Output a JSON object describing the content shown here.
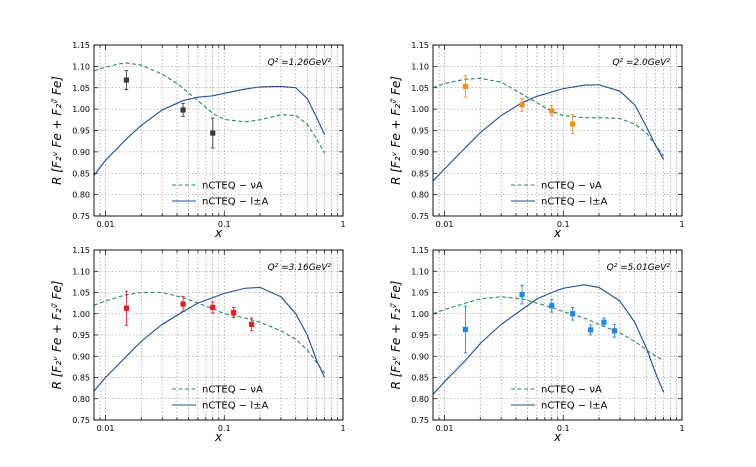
{
  "chart_data": [
    {
      "type": "line",
      "annotation": "Q² =1.26GeV²",
      "xlabel": "x",
      "ylabel": "R [F₂ᵛ Fe + F₂ᵛ̄ Fe]",
      "xscale": "log",
      "xlim": [
        0.008,
        1.0
      ],
      "ylim": [
        0.75,
        1.15
      ],
      "legend": {
        "placement": "lower-center",
        "entries": [
          "nCTEQ − νA",
          "nCTEQ − l±A"
        ]
      },
      "series": [
        {
          "name": "nCTEQ − νA",
          "style": "dashed",
          "color": "#2e8b57",
          "x": [
            0.008,
            0.01,
            0.0125,
            0.015,
            0.02,
            0.03,
            0.04,
            0.06,
            0.08,
            0.1,
            0.15,
            0.2,
            0.3,
            0.4,
            0.5,
            0.6,
            0.7
          ],
          "y": [
            1.09,
            1.098,
            1.105,
            1.108,
            1.103,
            1.082,
            1.06,
            1.02,
            0.99,
            0.976,
            0.97,
            0.975,
            0.987,
            0.985,
            0.965,
            0.93,
            0.897
          ]
        },
        {
          "name": "nCTEQ − l±A",
          "style": "solid",
          "color": "#1f4e96",
          "x": [
            0.008,
            0.01,
            0.015,
            0.02,
            0.03,
            0.045,
            0.06,
            0.08,
            0.1,
            0.15,
            0.2,
            0.3,
            0.4,
            0.5,
            0.6,
            0.7
          ],
          "y": [
            0.845,
            0.88,
            0.93,
            0.962,
            0.998,
            1.02,
            1.028,
            1.031,
            1.037,
            1.047,
            1.052,
            1.053,
            1.05,
            1.025,
            0.98,
            0.94
          ]
        }
      ],
      "points": {
        "color": "#3a3a3a",
        "x": [
          0.015,
          0.045,
          0.08
        ],
        "y": [
          1.068,
          0.998,
          0.944
        ],
        "err": [
          0.022,
          0.015,
          0.035
        ]
      },
      "xticks": [
        0.01,
        0.1,
        1
      ],
      "xticklabels": [
        "0.01",
        "0.1",
        "1"
      ],
      "yticks": [
        0.75,
        0.8,
        0.85,
        0.9,
        0.95,
        1.0,
        1.05,
        1.1,
        1.15
      ],
      "yticklabels": [
        "0.75",
        "0.80",
        "0.85",
        "0.90",
        "0.95",
        "1.00",
        "1.05",
        "1.10",
        "1.15"
      ]
    },
    {
      "type": "line",
      "annotation": "Q² =2.0GeV²",
      "xlabel": "x",
      "ylabel": "R [F₂ᵛ Fe + F₂ᵛ̄ Fe]",
      "xscale": "log",
      "xlim": [
        0.008,
        1.0
      ],
      "ylim": [
        0.75,
        1.15
      ],
      "legend": {
        "placement": "lower-center",
        "entries": [
          "nCTEQ − νA",
          "nCTEQ − l±A"
        ]
      },
      "series": [
        {
          "name": "nCTEQ − νA",
          "style": "dashed",
          "color": "#2e8b57",
          "x": [
            0.008,
            0.01,
            0.015,
            0.02,
            0.03,
            0.045,
            0.06,
            0.08,
            0.1,
            0.15,
            0.2,
            0.3,
            0.4,
            0.5,
            0.6,
            0.7
          ],
          "y": [
            1.05,
            1.06,
            1.07,
            1.072,
            1.063,
            1.035,
            1.015,
            0.995,
            0.985,
            0.98,
            0.98,
            0.978,
            0.965,
            0.945,
            0.915,
            0.89
          ]
        },
        {
          "name": "nCTEQ − l±A",
          "style": "solid",
          "color": "#1f4e96",
          "x": [
            0.008,
            0.01,
            0.015,
            0.02,
            0.03,
            0.045,
            0.06,
            0.08,
            0.1,
            0.15,
            0.2,
            0.3,
            0.4,
            0.5,
            0.6,
            0.7
          ],
          "y": [
            0.832,
            0.86,
            0.91,
            0.945,
            0.985,
            1.015,
            1.03,
            1.04,
            1.048,
            1.056,
            1.057,
            1.042,
            1.01,
            0.96,
            0.915,
            0.882
          ]
        }
      ],
      "points": {
        "color": "#f28c28",
        "x": [
          0.015,
          0.045,
          0.08,
          0.12
        ],
        "y": [
          1.053,
          1.01,
          0.996,
          0.965
        ],
        "err": [
          0.025,
          0.015,
          0.012,
          0.022
        ]
      },
      "xticks": [
        0.01,
        0.1,
        1
      ],
      "xticklabels": [
        "0.01",
        "0.1",
        "1"
      ],
      "yticks": [
        0.75,
        0.8,
        0.85,
        0.9,
        0.95,
        1.0,
        1.05,
        1.1,
        1.15
      ],
      "yticklabels": [
        "0.75",
        "0.80",
        "0.85",
        "0.90",
        "0.95",
        "1.00",
        "1.05",
        "1.10",
        "1.15"
      ]
    },
    {
      "type": "line",
      "annotation": "Q² =3.16GeV²",
      "xlabel": "x",
      "ylabel": "R [F₂ᵛ Fe + F₂ᵛ̄ Fe]",
      "xscale": "log",
      "xlim": [
        0.008,
        1.0
      ],
      "ylim": [
        0.75,
        1.15
      ],
      "legend": {
        "placement": "lower-center",
        "entries": [
          "nCTEQ − νA",
          "nCTEQ − l±A"
        ]
      },
      "series": [
        {
          "name": "nCTEQ − νA",
          "style": "dashed",
          "color": "#2e8b57",
          "x": [
            0.008,
            0.01,
            0.015,
            0.02,
            0.03,
            0.045,
            0.06,
            0.08,
            0.1,
            0.15,
            0.2,
            0.3,
            0.4,
            0.5,
            0.6,
            0.7
          ],
          "y": [
            1.02,
            1.03,
            1.045,
            1.05,
            1.05,
            1.038,
            1.025,
            1.012,
            1.0,
            0.99,
            0.98,
            0.96,
            0.94,
            0.915,
            0.885,
            0.86
          ]
        },
        {
          "name": "nCTEQ − l±A",
          "style": "solid",
          "color": "#1f4e96",
          "x": [
            0.008,
            0.01,
            0.015,
            0.02,
            0.03,
            0.045,
            0.06,
            0.08,
            0.1,
            0.15,
            0.2,
            0.3,
            0.4,
            0.5,
            0.6,
            0.7
          ],
          "y": [
            0.818,
            0.85,
            0.9,
            0.935,
            0.975,
            1.005,
            1.025,
            1.038,
            1.048,
            1.06,
            1.062,
            1.04,
            1.0,
            0.95,
            0.89,
            0.85
          ]
        }
      ],
      "points": {
        "color": "#e02020",
        "x": [
          0.015,
          0.045,
          0.08,
          0.12,
          0.17
        ],
        "y": [
          1.013,
          1.023,
          1.015,
          1.003,
          0.975
        ],
        "err": [
          0.04,
          0.018,
          0.013,
          0.012,
          0.015
        ]
      },
      "xticks": [
        0.01,
        0.1,
        1
      ],
      "xticklabels": [
        "0.01",
        "0.1",
        "1"
      ],
      "yticks": [
        0.75,
        0.8,
        0.85,
        0.9,
        0.95,
        1.0,
        1.05,
        1.1,
        1.15
      ],
      "yticklabels": [
        "0.75",
        "0.80",
        "0.85",
        "0.90",
        "0.95",
        "1.00",
        "1.05",
        "1.10",
        "1.15"
      ]
    },
    {
      "type": "line",
      "annotation": "Q² =5.01GeV²",
      "xlabel": "x",
      "ylabel": "R [F₂ᵛ Fe + F₂ᵛ̄ Fe]",
      "xscale": "log",
      "xlim": [
        0.008,
        1.0
      ],
      "ylim": [
        0.75,
        1.15
      ],
      "legend": {
        "placement": "lower-center",
        "entries": [
          "nCTEQ − νA",
          "nCTEQ − l±A"
        ]
      },
      "series": [
        {
          "name": "nCTEQ − νA",
          "style": "dashed",
          "color": "#2e8b57",
          "x": [
            0.008,
            0.01,
            0.015,
            0.02,
            0.03,
            0.045,
            0.06,
            0.08,
            0.1,
            0.15,
            0.2,
            0.3,
            0.4,
            0.5,
            0.6,
            0.7
          ],
          "y": [
            1.0,
            1.01,
            1.025,
            1.035,
            1.04,
            1.035,
            1.025,
            1.015,
            1.005,
            0.99,
            0.975,
            0.955,
            0.935,
            0.915,
            0.9,
            0.89
          ]
        },
        {
          "name": "nCTEQ − l±A",
          "style": "solid",
          "color": "#1f4e96",
          "x": [
            0.008,
            0.01,
            0.015,
            0.02,
            0.03,
            0.045,
            0.06,
            0.08,
            0.1,
            0.15,
            0.2,
            0.3,
            0.4,
            0.5,
            0.6,
            0.7
          ],
          "y": [
            0.81,
            0.84,
            0.89,
            0.93,
            0.975,
            1.01,
            1.035,
            1.05,
            1.06,
            1.068,
            1.062,
            1.03,
            0.98,
            0.92,
            0.86,
            0.815
          ]
        }
      ],
      "points": {
        "color": "#1e88e5",
        "x": [
          0.015,
          0.045,
          0.08,
          0.12,
          0.17,
          0.22,
          0.27
        ],
        "y": [
          0.963,
          1.045,
          1.019,
          1.0,
          0.962,
          0.98,
          0.96
        ],
        "err": [
          0.055,
          0.022,
          0.015,
          0.015,
          0.012,
          0.01,
          0.015
        ]
      },
      "xticks": [
        0.01,
        0.1,
        1
      ],
      "xticklabels": [
        "0.01",
        "0.1",
        "1"
      ],
      "yticks": [
        0.75,
        0.8,
        0.85,
        0.9,
        0.95,
        1.0,
        1.05,
        1.1,
        1.15
      ],
      "yticklabels": [
        "0.75",
        "0.80",
        "0.85",
        "0.90",
        "0.95",
        "1.00",
        "1.05",
        "1.10",
        "1.15"
      ]
    }
  ]
}
